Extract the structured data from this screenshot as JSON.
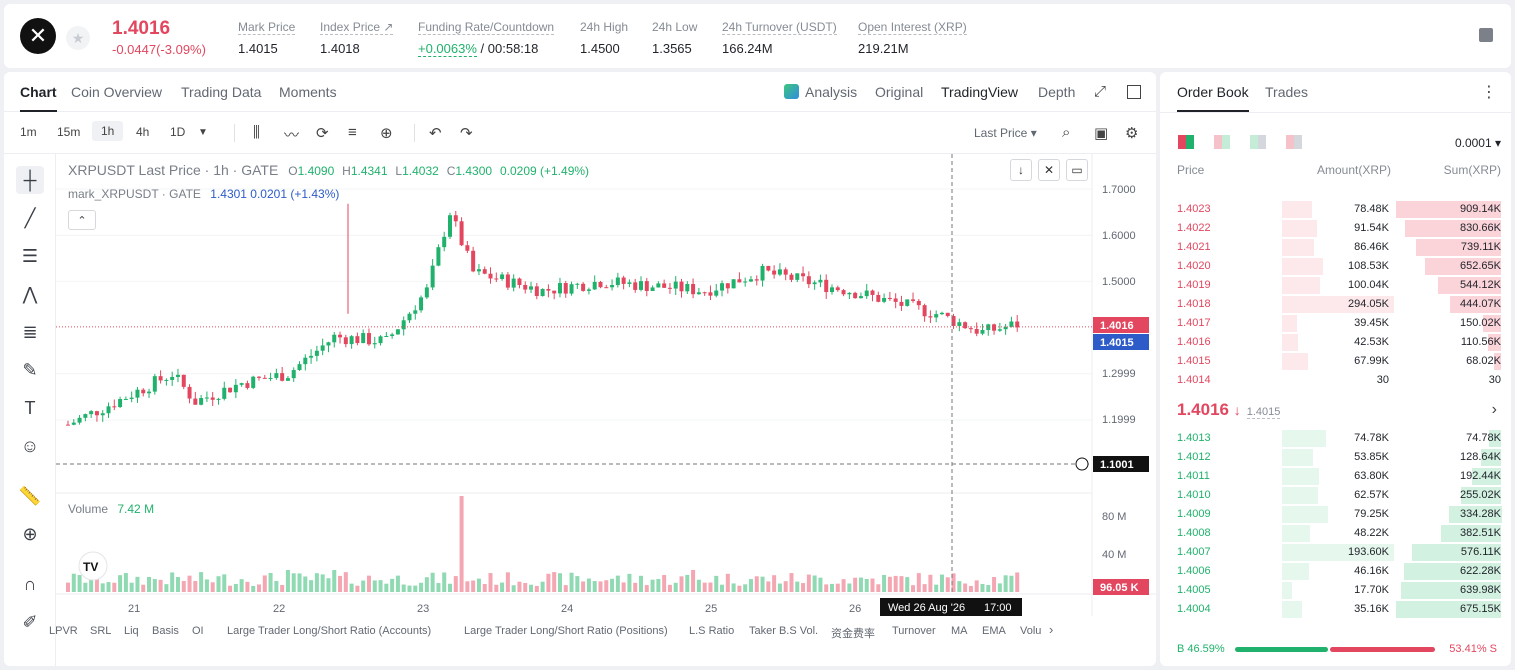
{
  "header": {
    "price": "1.4016",
    "change": "-0.0447(-3.09%)",
    "stats": [
      {
        "label": "Mark Price",
        "value": "1.4015"
      },
      {
        "label": "Index Price ↗",
        "value": "1.4018"
      },
      {
        "label": "Funding Rate/Countdown",
        "rate": "+0.0063%",
        "countdown": "/ 00:58:18"
      },
      {
        "label": "24h High",
        "value": "1.4500"
      },
      {
        "label": "24h Low",
        "value": "1.3565"
      },
      {
        "label": "24h Turnover (USDT)",
        "value": "166.24M"
      },
      {
        "label": "Open Interest (XRP)",
        "value": "219.21M"
      }
    ]
  },
  "chart_tabs": [
    "Chart",
    "Coin Overview",
    "Trading Data",
    "Moments"
  ],
  "view_tabs": [
    "Analysis",
    "Original",
    "TradingView",
    "Depth"
  ],
  "intervals": [
    "1m",
    "15m",
    "1h",
    "4h",
    "1D"
  ],
  "last_price_select": "Last Price",
  "legend": {
    "symbol": "XRPUSDT Last Price · 1h · GATE",
    "o": "O",
    "o_val": "1.4090",
    "h": "H",
    "h_val": "1.4341",
    "l": "L",
    "l_val": "1.4032",
    "c": "C",
    "c_val": "1.4300",
    "chg": "0.0209 (+1.49%)",
    "mark_symbol": "mark_XRPUSDT · GATE",
    "mark_val": "1.4301  0.0201 (+1.43%)",
    "volume_label": "Volume",
    "volume_val": "7.42 M"
  },
  "price_axis": [
    "1.7000",
    "1.6000",
    "1.5000",
    "1.2999",
    "1.1999"
  ],
  "price_tags": {
    "last": "1.4016",
    "mark": "1.4015",
    "cursor": "1.1001"
  },
  "volume_axis": [
    "80 M",
    "40 M"
  ],
  "volume_tag": "96.05 K",
  "date_axis": [
    "21",
    "22",
    "23",
    "24",
    "25",
    "26"
  ],
  "crosshair_date": "Wed 26 Aug '26",
  "crosshair_time": "17:00",
  "indicators": [
    "LPVR",
    "SRL",
    "Liq",
    "Basis",
    "OI",
    "Large Trader Long/Short Ratio (Accounts)",
    "Large Trader Long/Short Ratio (Positions)",
    "L.S Ratio",
    "Taker B.S Vol.",
    "资金费率",
    "Turnover",
    "MA",
    "EMA",
    "Volu"
  ],
  "orderbook": {
    "tabs": [
      "Order Book",
      "Trades"
    ],
    "precision": "0.0001",
    "headers": [
      "Price",
      "Amount(XRP)",
      "Sum(XRP)"
    ],
    "asks": [
      {
        "price": "1.4023",
        "amount": "78.48K",
        "sum": "909.14K",
        "af": 0.27,
        "sf": 1.0
      },
      {
        "price": "1.4022",
        "amount": "91.54K",
        "sum": "830.66K",
        "af": 0.31,
        "sf": 0.91
      },
      {
        "price": "1.4021",
        "amount": "86.46K",
        "sum": "739.11K",
        "af": 0.29,
        "sf": 0.81
      },
      {
        "price": "1.4020",
        "amount": "108.53K",
        "sum": "652.65K",
        "af": 0.37,
        "sf": 0.72
      },
      {
        "price": "1.4019",
        "amount": "100.04K",
        "sum": "544.12K",
        "af": 0.34,
        "sf": 0.6
      },
      {
        "price": "1.4018",
        "amount": "294.05K",
        "sum": "444.07K",
        "af": 1.0,
        "sf": 0.49
      },
      {
        "price": "1.4017",
        "amount": "39.45K",
        "sum": "150.02K",
        "af": 0.13,
        "sf": 0.17
      },
      {
        "price": "1.4016",
        "amount": "42.53K",
        "sum": "110.56K",
        "af": 0.14,
        "sf": 0.12
      },
      {
        "price": "1.4015",
        "amount": "67.99K",
        "sum": "68.02K",
        "af": 0.23,
        "sf": 0.07
      },
      {
        "price": "1.4014",
        "amount": "30",
        "sum": "30",
        "af": 0.0,
        "sf": 0.0
      }
    ],
    "mid_price": "1.4016",
    "mid_arrow": "↓",
    "mid_mark": "1.4015",
    "bids": [
      {
        "price": "1.4013",
        "amount": "74.78K",
        "sum": "74.78K",
        "af": 0.39,
        "sf": 0.11
      },
      {
        "price": "1.4012",
        "amount": "53.85K",
        "sum": "128.64K",
        "af": 0.28,
        "sf": 0.19
      },
      {
        "price": "1.4011",
        "amount": "63.80K",
        "sum": "192.44K",
        "af": 0.33,
        "sf": 0.28
      },
      {
        "price": "1.4010",
        "amount": "62.57K",
        "sum": "255.02K",
        "af": 0.32,
        "sf": 0.38
      },
      {
        "price": "1.4009",
        "amount": "79.25K",
        "sum": "334.28K",
        "af": 0.41,
        "sf": 0.5
      },
      {
        "price": "1.4008",
        "amount": "48.22K",
        "sum": "382.51K",
        "af": 0.25,
        "sf": 0.57
      },
      {
        "price": "1.4007",
        "amount": "193.60K",
        "sum": "576.11K",
        "af": 1.0,
        "sf": 0.85
      },
      {
        "price": "1.4006",
        "amount": "46.16K",
        "sum": "622.28K",
        "af": 0.24,
        "sf": 0.92
      },
      {
        "price": "1.4005",
        "amount": "17.70K",
        "sum": "639.98K",
        "af": 0.09,
        "sf": 0.95
      },
      {
        "price": "1.4004",
        "amount": "35.16K",
        "sum": "675.15K",
        "af": 0.18,
        "sf": 1.0
      }
    ],
    "buy_ratio": "B 46.59%",
    "sell_ratio": "53.41% S",
    "buy_fraction": 0.4659
  },
  "colors": {
    "up": "#20b26c",
    "down": "#e2475f",
    "accent": "#2d5cc9"
  }
}
